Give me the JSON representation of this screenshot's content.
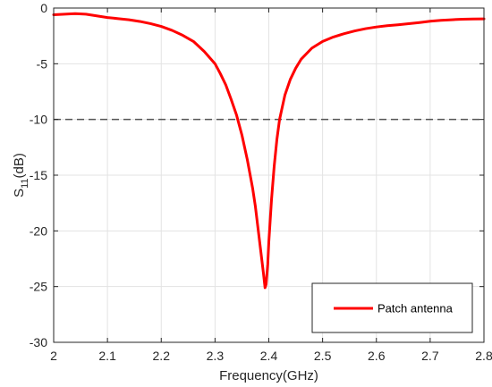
{
  "chart_data": {
    "type": "line",
    "title": "",
    "xlabel": "Frequency(GHz)",
    "ylabel": {
      "base": "S",
      "subscript": "11",
      "suffix": "(dB)"
    },
    "xlim": [
      2,
      2.8
    ],
    "ylim": [
      -30,
      0
    ],
    "xticks": [
      "2",
      "2.1",
      "2.2",
      "2.3",
      "2.4",
      "2.5",
      "2.6",
      "2.7",
      "2.8"
    ],
    "yticks": [
      "0",
      "-5",
      "-10",
      "-15",
      "-20",
      "-25",
      "-30"
    ],
    "grid": true,
    "legend_position": "bottom-right",
    "series": [
      {
        "name": "Patch antenna",
        "color": "#ff0000",
        "x": [
          2.0,
          2.02,
          2.04,
          2.06,
          2.08,
          2.1,
          2.12,
          2.14,
          2.16,
          2.18,
          2.2,
          2.22,
          2.24,
          2.26,
          2.28,
          2.3,
          2.31,
          2.32,
          2.33,
          2.34,
          2.35,
          2.36,
          2.37,
          2.375,
          2.38,
          2.385,
          2.39,
          2.393,
          2.395,
          2.398,
          2.4,
          2.405,
          2.41,
          2.415,
          2.42,
          2.43,
          2.44,
          2.45,
          2.46,
          2.48,
          2.5,
          2.52,
          2.54,
          2.56,
          2.58,
          2.6,
          2.62,
          2.64,
          2.66,
          2.68,
          2.7,
          2.72,
          2.74,
          2.76,
          2.78,
          2.8
        ],
        "y": [
          -0.6,
          -0.55,
          -0.5,
          -0.55,
          -0.7,
          -0.85,
          -0.95,
          -1.05,
          -1.2,
          -1.4,
          -1.65,
          -2.0,
          -2.45,
          -3.0,
          -3.9,
          -5.0,
          -5.9,
          -6.9,
          -8.2,
          -9.6,
          -11.4,
          -13.6,
          -16.2,
          -17.8,
          -19.8,
          -21.8,
          -23.8,
          -25.1,
          -24.8,
          -23.0,
          -21.0,
          -17.2,
          -14.2,
          -11.8,
          -10.0,
          -7.8,
          -6.4,
          -5.4,
          -4.6,
          -3.6,
          -3.0,
          -2.6,
          -2.3,
          -2.05,
          -1.85,
          -1.7,
          -1.58,
          -1.5,
          -1.4,
          -1.3,
          -1.18,
          -1.1,
          -1.05,
          -1.0,
          -0.98,
          -0.97
        ]
      }
    ],
    "reference_lines": [
      {
        "axis": "y",
        "value": -10,
        "color": "#555555",
        "style": "dashed"
      }
    ]
  }
}
